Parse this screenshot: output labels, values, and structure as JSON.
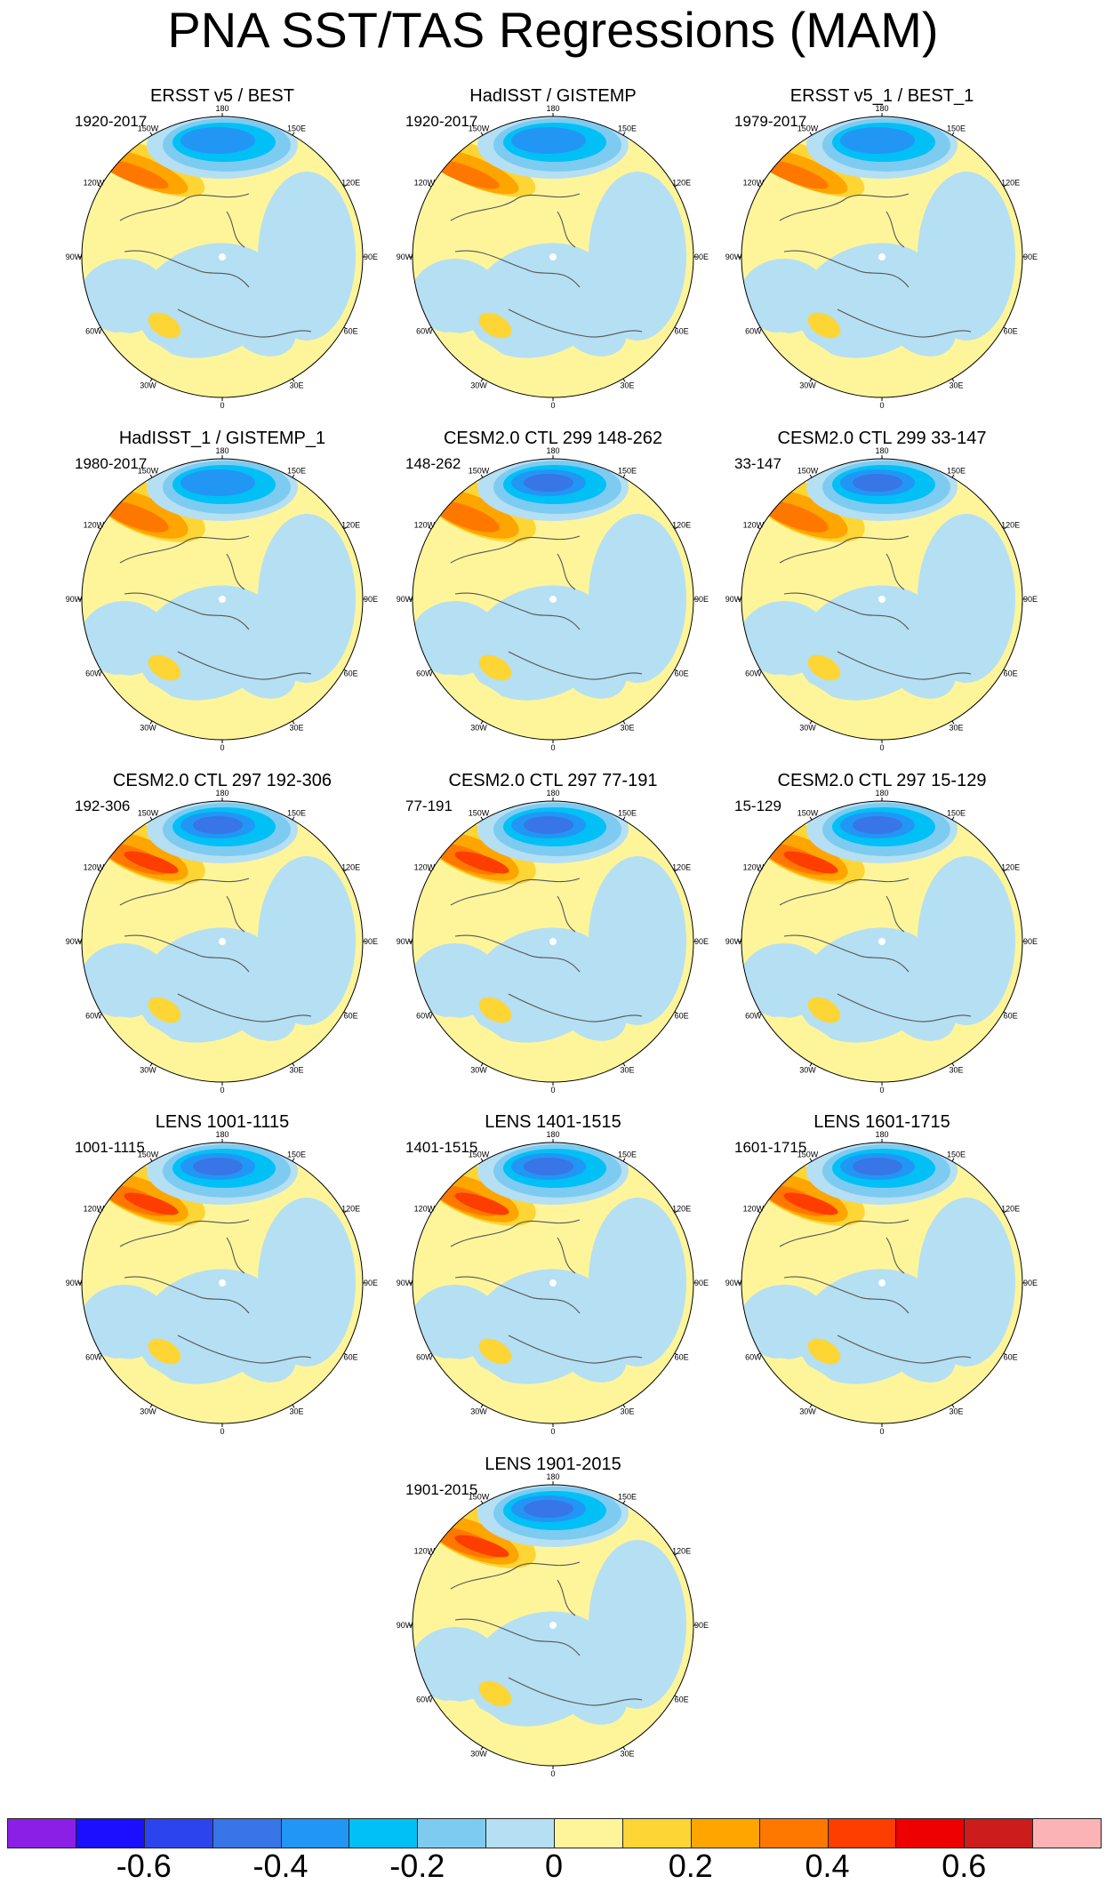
{
  "title": "PNA SST/TAS Regressions (MAM)",
  "longitude_labels": [
    "180",
    "150E",
    "120E",
    "90E",
    "60E",
    "30E",
    "0",
    "30W",
    "60W",
    "90W",
    "120W",
    "150W"
  ],
  "panels": [
    {
      "title": "ERSST v5 / BEST",
      "period": "1920-2017"
    },
    {
      "title": "HadISST / GISTEMP",
      "period": "1920-2017"
    },
    {
      "title": "ERSST v5_1 / BEST_1",
      "period": "1979-2017"
    },
    {
      "title": "HadISST_1 / GISTEMP_1",
      "period": "1980-2017"
    },
    {
      "title": "CESM2.0 CTL 299 148-262",
      "period": "148-262"
    },
    {
      "title": "CESM2.0 CTL 299 33-147",
      "period": "33-147"
    },
    {
      "title": "CESM2.0 CTL 297 192-306",
      "period": "192-306"
    },
    {
      "title": "CESM2.0 CTL 297 77-191",
      "period": "77-191"
    },
    {
      "title": "CESM2.0 CTL 297 15-129",
      "period": "15-129"
    },
    {
      "title": "LENS 1001-1115",
      "period": "1001-1115"
    },
    {
      "title": "LENS 1401-1515",
      "period": "1401-1515"
    },
    {
      "title": "LENS 1601-1715",
      "period": "1601-1715"
    },
    {
      "title": "LENS 1901-2015",
      "period": "1901-2015"
    }
  ],
  "colorbar": {
    "colors": [
      "#8b1fe6",
      "#1a10ff",
      "#2c44ee",
      "#3875e6",
      "#2196f5",
      "#00c0f6",
      "#7dcbf1",
      "#b5dff3",
      "#fef59b",
      "#fdd535",
      "#fea500",
      "#fe7800",
      "#fe3d00",
      "#ee0000",
      "#cc1c1c",
      "#fcb3b6"
    ],
    "tick_labels": [
      "-0.6",
      "-0.4",
      "-0.2",
      "0",
      "0.2",
      "0.4",
      "0.6"
    ],
    "tick_boundaries": [
      1,
      3,
      5,
      7,
      9,
      11,
      13
    ]
  }
}
